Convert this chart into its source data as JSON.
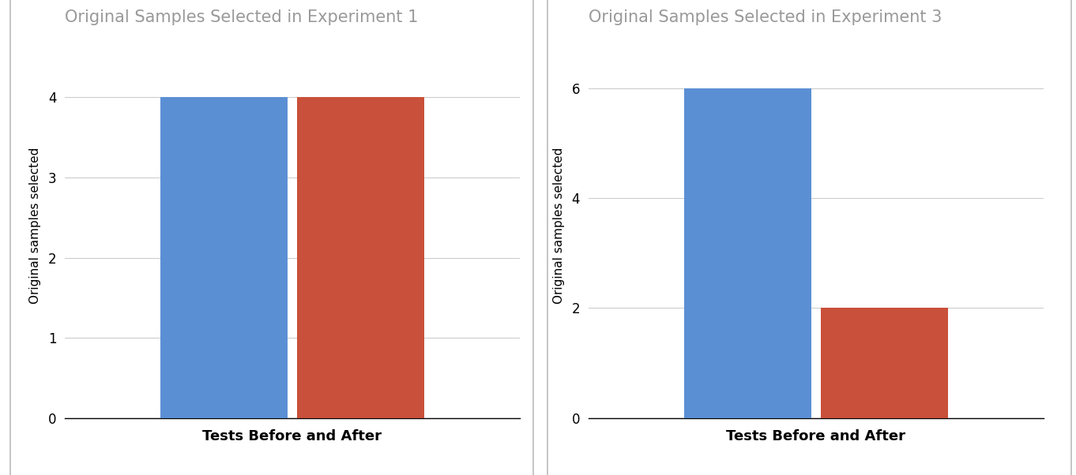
{
  "exp1": {
    "title": "Original Samples Selected in Experiment 1",
    "values": [
      4,
      4
    ],
    "colors": [
      "#5b8fd4",
      "#c9503a"
    ],
    "xlabel": "Tests Before and After",
    "ylabel": "Original samples selected",
    "ylim": [
      0,
      4.8
    ],
    "yticks": [
      0,
      1,
      2,
      3,
      4
    ]
  },
  "exp3": {
    "title": "Original Samples Selected in Experiment 3",
    "values": [
      6,
      2
    ],
    "colors": [
      "#5b8fd4",
      "#c9503a"
    ],
    "xlabel": "Tests Before and After",
    "ylabel": "Original samples selected",
    "ylim": [
      0,
      7.0
    ],
    "yticks": [
      0,
      2,
      4,
      6
    ]
  },
  "title_color": "#999999",
  "title_fontsize": 15,
  "xlabel_fontsize": 13,
  "ylabel_fontsize": 11,
  "tick_fontsize": 12,
  "bar_width": 0.28,
  "bar_positions": [
    0.35,
    0.65
  ],
  "xlim": [
    0.0,
    1.0
  ],
  "background_color": "#ffffff",
  "box_edge_color": "#bbbbbb",
  "grid_color": "#cccccc"
}
